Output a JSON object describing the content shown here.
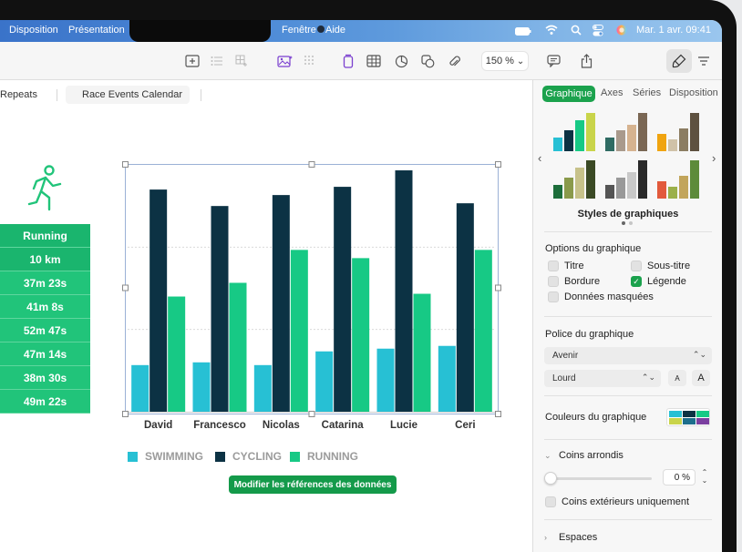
{
  "menubar": {
    "items": [
      "Disposition",
      "Présentation",
      "Fenêtre",
      "Aide"
    ],
    "datetime": "Mar. 1 avr.  09:41"
  },
  "toolbar": {
    "zoom": "150 %",
    "zoom_chevron": "⌄"
  },
  "tabs": [
    "Repeats",
    "Race Events Calendar"
  ],
  "run_table": {
    "header": "Running",
    "distance": "10 km",
    "times": [
      "37m 23s",
      "41m 8s",
      "52m 47s",
      "47m 14s",
      "38m 30s",
      "49m 22s"
    ]
  },
  "chart_data": {
    "type": "bar",
    "categories": [
      "David",
      "Francesco",
      "Nicolas",
      "Catarina",
      "Lucie",
      "Ceri"
    ],
    "series": [
      {
        "name": "SWIMMING",
        "color": "#27c0d4",
        "values": [
          17,
          18,
          17,
          22,
          23,
          24
        ]
      },
      {
        "name": "CYCLING",
        "color": "#0c3244",
        "values": [
          81,
          75,
          79,
          82,
          88,
          76
        ]
      },
      {
        "name": "RUNNING",
        "color": "#17c985",
        "values": [
          42,
          47,
          59,
          56,
          43,
          59
        ]
      }
    ],
    "title": "",
    "xlabel": "",
    "ylabel": "",
    "ylim": [
      0,
      90
    ],
    "grid": true,
    "legend_position": "bottom"
  },
  "edit_refs_label": "Modifier les références des données",
  "inspector": {
    "tabs": [
      "Graphique",
      "Axes",
      "Séries",
      "Disposition"
    ],
    "styles_label": "Styles de graphiques",
    "style_thumbs": [
      [
        "#27c0d4",
        "#0c3244",
        "#17c985",
        "#c9d44a"
      ],
      [
        "#2f6b63",
        "#a99a8c",
        "#d6b38f",
        "#7a6754"
      ],
      [
        "#f0a410",
        "#d0c2a8",
        "#8c7d62",
        "#5e5140"
      ],
      [
        "#1d6e3b",
        "#8a9a4b",
        "#c7c28a",
        "#3b4a25"
      ],
      [
        "#555555",
        "#999999",
        "#c9c9c9",
        "#2a2a2a"
      ],
      [
        "#e25a3c",
        "#9bb04a",
        "#c2a55b",
        "#5d8b3a"
      ]
    ],
    "options_title": "Options du graphique",
    "options": [
      {
        "label": "Titre",
        "checked": false
      },
      {
        "label": "Sous-titre",
        "checked": false
      },
      {
        "label": "Bordure",
        "checked": false
      },
      {
        "label": "Légende",
        "checked": true
      },
      {
        "label": "Données masquées",
        "checked": false
      }
    ],
    "font_title": "Police du graphique",
    "font_family": "Avenir",
    "font_weight": "Lourd",
    "size_small": "A",
    "size_large": "A",
    "colors_label": "Couleurs du graphique",
    "color_swatches": [
      "#27c0d4",
      "#0c3244",
      "#17c985",
      "#c9d44a",
      "#1d6e8c",
      "#7b3fa0"
    ],
    "rounded_label": "Coins arrondis",
    "rounded_value": "0 %",
    "outer_only_label": "Coins extérieurs uniquement",
    "spaces_label": "Espaces"
  }
}
